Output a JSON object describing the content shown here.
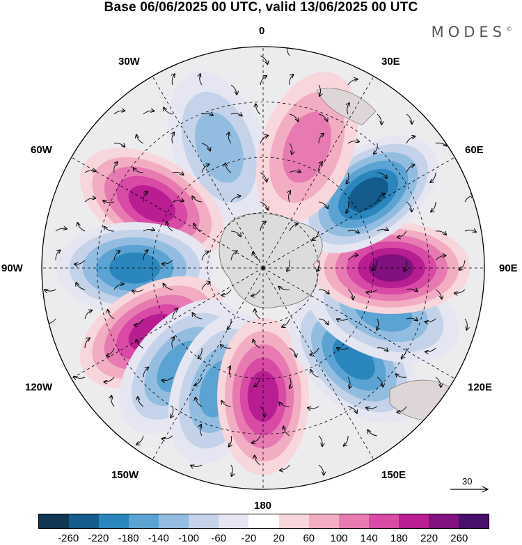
{
  "title": "Base 06/06/2025 00 UTC, valid 13/06/2025 00 UTC",
  "brand": {
    "text": "MODES",
    "mark": "©"
  },
  "longitude_labels": {
    "lon_0": "0",
    "lon_30e": "30E",
    "lon_60e": "60E",
    "lon_90e": "90E",
    "lon_120e": "120E",
    "lon_150e": "150E",
    "lon_180": "180",
    "lon_150w": "150W",
    "lon_120w": "120W",
    "lon_90w": "90W",
    "lon_60w": "60W",
    "lon_30w": "30W"
  },
  "reference_vector": {
    "label": "30",
    "icon": "arrow-right-icon"
  },
  "colorbar": {
    "colors": [
      "#0f3654",
      "#135c8c",
      "#2b86bd",
      "#5aa3d2",
      "#93bde0",
      "#c4d3e9",
      "#e5e6f1",
      "#ffffff",
      "#f7d6dc",
      "#f2adc3",
      "#e77bb1",
      "#d84aa6",
      "#b81e91",
      "#80117e",
      "#4a0f6d"
    ],
    "labels": [
      "-260",
      "-220",
      "-180",
      "-140",
      "-100",
      "-60",
      "-20",
      "20",
      "60",
      "100",
      "140",
      "180",
      "220",
      "260"
    ]
  },
  "map": {
    "projection": "south-polar-stereographic",
    "center_hemisphere": "south",
    "anomalies": [
      {
        "lon": 340,
        "level": 4,
        "label_hint": "low"
      },
      {
        "lon": 300,
        "level": 12,
        "label_hint": "high"
      },
      {
        "lon": 270,
        "level": 2,
        "label_hint": "low"
      },
      {
        "lon": 240,
        "level": 12,
        "label_hint": "high"
      },
      {
        "lon": 220,
        "level": 3,
        "label_hint": "low"
      },
      {
        "lon": 200,
        "level": 3,
        "label_hint": "low"
      },
      {
        "lon": 180,
        "level": 12,
        "label_hint": "high"
      },
      {
        "lon": 135,
        "level": 2,
        "label_hint": "low"
      },
      {
        "lon": 110,
        "level": 3,
        "label_hint": "low"
      },
      {
        "lon": 90,
        "level": 13,
        "label_hint": "high"
      },
      {
        "lon": 55,
        "level": 1,
        "label_hint": "low"
      },
      {
        "lon": 20,
        "level": 10,
        "label_hint": "high"
      }
    ]
  }
}
